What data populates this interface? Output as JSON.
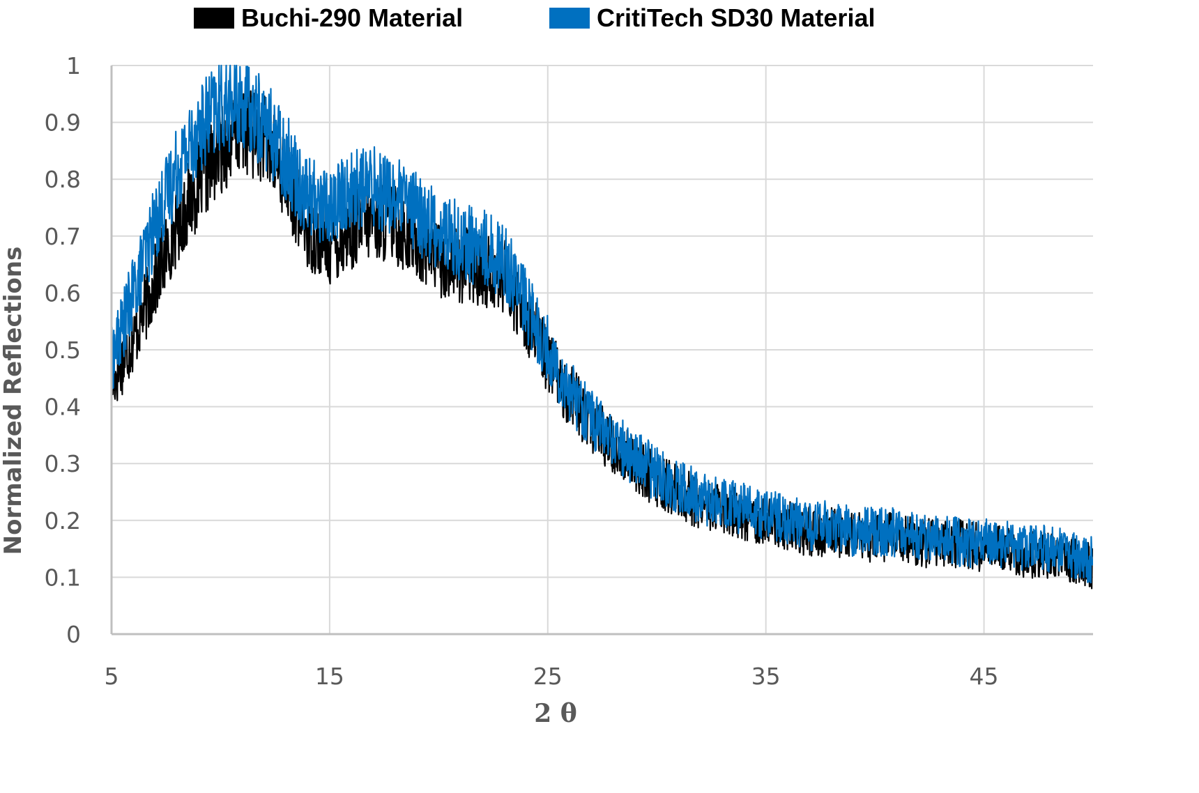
{
  "chart_data": {
    "type": "line",
    "title": "",
    "xlabel": "2 θ",
    "ylabel": "Normalized Reflections",
    "xlim": [
      5,
      50
    ],
    "ylim": [
      0,
      1
    ],
    "x_ticks": [
      "5",
      "15",
      "25",
      "35",
      "45"
    ],
    "y_ticks": [
      "0",
      "0.1",
      "0.2",
      "0.3",
      "0.4",
      "0.5",
      "0.6",
      "0.7",
      "0.8",
      "0.9",
      "1"
    ],
    "grid": true,
    "legend_position": "top",
    "x": [
      5,
      6,
      7,
      8,
      9,
      10,
      11,
      12,
      13,
      14,
      15,
      16,
      17,
      18,
      19,
      20,
      21,
      22,
      23,
      24,
      25,
      26,
      27,
      28,
      29,
      30,
      31,
      32,
      33,
      34,
      35,
      36,
      37,
      38,
      39,
      40,
      41,
      42,
      43,
      44,
      45,
      46,
      47,
      48,
      49,
      50
    ],
    "series": [
      {
        "name": "Buchi-290 Material",
        "color": "#000000",
        "values": [
          0.44,
          0.52,
          0.62,
          0.72,
          0.79,
          0.85,
          0.89,
          0.87,
          0.8,
          0.71,
          0.68,
          0.71,
          0.73,
          0.72,
          0.69,
          0.66,
          0.65,
          0.64,
          0.63,
          0.56,
          0.48,
          0.42,
          0.37,
          0.33,
          0.3,
          0.27,
          0.25,
          0.23,
          0.22,
          0.21,
          0.2,
          0.19,
          0.18,
          0.18,
          0.17,
          0.17,
          0.17,
          0.16,
          0.16,
          0.16,
          0.15,
          0.15,
          0.14,
          0.14,
          0.13,
          0.12
        ]
      },
      {
        "name": "CritiTech SD30 Material",
        "color": "#0070C0",
        "values": [
          0.48,
          0.6,
          0.72,
          0.82,
          0.89,
          0.93,
          0.93,
          0.9,
          0.84,
          0.77,
          0.75,
          0.78,
          0.79,
          0.77,
          0.74,
          0.71,
          0.69,
          0.68,
          0.66,
          0.58,
          0.5,
          0.43,
          0.38,
          0.34,
          0.31,
          0.28,
          0.26,
          0.24,
          0.23,
          0.22,
          0.21,
          0.2,
          0.19,
          0.19,
          0.18,
          0.18,
          0.18,
          0.17,
          0.17,
          0.16,
          0.16,
          0.16,
          0.15,
          0.15,
          0.14,
          0.13
        ]
      }
    ]
  },
  "legend": {
    "items": [
      {
        "label": "Buchi-290 Material",
        "color": "#000000"
      },
      {
        "label": "CritiTech SD30 Material",
        "color": "#0070C0"
      }
    ]
  },
  "axes": {
    "x_title": "2 θ",
    "y_title": "Normalized Reflections",
    "x_tick_labels": [
      "5",
      "15",
      "25",
      "35",
      "45"
    ],
    "y_tick_labels": [
      "0",
      "0.1",
      "0.2",
      "0.3",
      "0.4",
      "0.5",
      "0.6",
      "0.7",
      "0.8",
      "0.9",
      "1"
    ]
  },
  "colors": {
    "grid": "#D9D9D9",
    "axis": "#BFBFBF",
    "tick_text": "#595959"
  }
}
